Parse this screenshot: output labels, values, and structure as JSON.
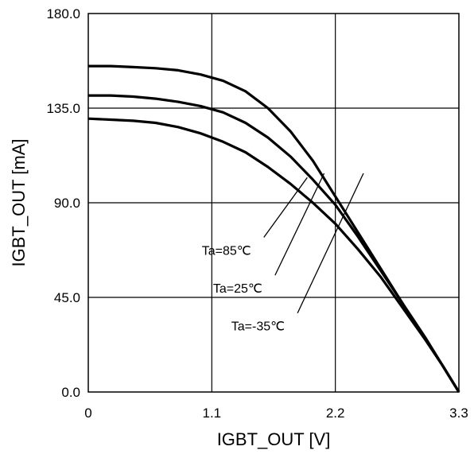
{
  "chart_data": {
    "type": "line",
    "title": "",
    "xlabel": "IGBT_OUT [V]",
    "ylabel": "IGBT_OUT [mA]",
    "xlim": [
      0,
      3.3
    ],
    "ylim": [
      0,
      180
    ],
    "xticks": [
      0,
      1.1,
      2.2,
      3.3
    ],
    "xtick_labels": [
      "0",
      "1.1",
      "2.2",
      "3.3"
    ],
    "yticks": [
      0,
      45,
      90,
      135,
      180
    ],
    "ytick_labels": [
      "0.0",
      "45.0",
      "90.0",
      "135.0",
      "180.0"
    ],
    "grid": true,
    "legend": "none",
    "line_color": "#000000",
    "series": [
      {
        "name": "Ta=-35℃",
        "x": [
          0,
          0.2,
          0.4,
          0.6,
          0.8,
          1.0,
          1.2,
          1.4,
          1.6,
          1.8,
          2.0,
          2.2,
          2.4,
          2.6,
          2.8,
          3.0,
          3.15,
          3.3
        ],
        "y": [
          155,
          155,
          154.5,
          154,
          153,
          151,
          148,
          143,
          135,
          124,
          110,
          93,
          76,
          59,
          42,
          25,
          13,
          0
        ]
      },
      {
        "name": "Ta=25℃",
        "x": [
          0,
          0.2,
          0.4,
          0.6,
          0.8,
          1.0,
          1.2,
          1.4,
          1.6,
          1.8,
          2.0,
          2.2,
          2.4,
          2.6,
          2.8,
          3.0,
          3.15,
          3.3
        ],
        "y": [
          141,
          141,
          140.5,
          139.5,
          138,
          136,
          133,
          128,
          121,
          112,
          101,
          89,
          74,
          58,
          42,
          26,
          13,
          0
        ]
      },
      {
        "name": "Ta=85℃",
        "x": [
          0,
          0.2,
          0.4,
          0.6,
          0.8,
          1.0,
          1.2,
          1.4,
          1.6,
          1.8,
          2.0,
          2.2,
          2.4,
          2.6,
          2.8,
          3.0,
          3.15,
          3.3
        ],
        "y": [
          130,
          129.5,
          129,
          128,
          126,
          123,
          119,
          114,
          107,
          99,
          90,
          80,
          68,
          55,
          40,
          25,
          13,
          0
        ]
      }
    ],
    "annotations": [
      {
        "text": "Ta=85℃",
        "series": "Ta=85℃",
        "label_x": 1.45,
        "label_y": 69,
        "line_to_x": 1.95,
        "line_to_y": 102
      },
      {
        "text": "Ta=25℃",
        "series": "Ta=25℃",
        "label_x": 1.55,
        "label_y": 51,
        "line_to_x": 2.1,
        "line_to_y": 104
      },
      {
        "text": "Ta=-35℃",
        "series": "Ta=-35℃",
        "label_x": 1.75,
        "label_y": 33,
        "line_to_x": 2.45,
        "line_to_y": 104
      }
    ]
  }
}
